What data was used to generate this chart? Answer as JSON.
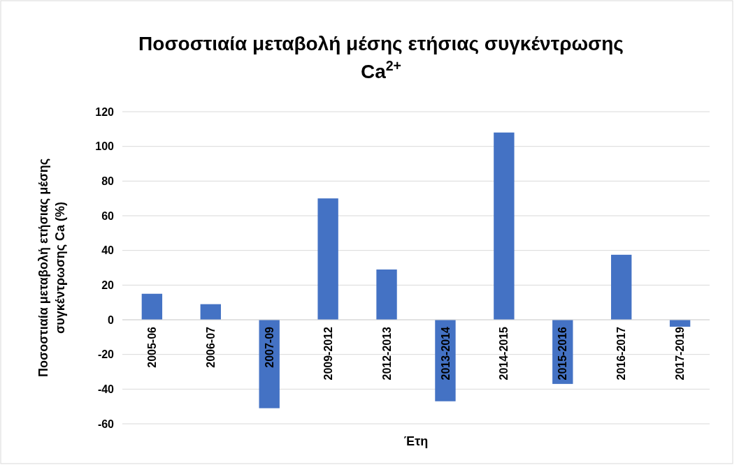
{
  "chart_data": {
    "type": "bar",
    "title": "Ποσοστιαία μεταβολή μέσης ετήσιας συγκέντρωσης Ca$^{2+}$",
    "xlabel": "Έτη",
    "ylabel": "Ποσοστιαία μεταβολή ετήσιας μέσης συγκέντρωσης Ca (%)",
    "categories": [
      "2005-06",
      "2006-07",
      "2007-09",
      "2009-2012",
      "2012-2013",
      "2013-2014",
      "2014-2015",
      "2015-2016",
      "2016-2017",
      "2017-2019"
    ],
    "values": [
      15,
      9,
      -51,
      70,
      29,
      -47,
      108,
      -37,
      37.5,
      -4
    ],
    "color": "#4472c4",
    "ylim": [
      -60,
      120
    ],
    "yticks": [
      -60,
      -40,
      -20,
      0,
      20,
      40,
      60,
      80,
      100,
      120
    ],
    "grid": "y"
  }
}
